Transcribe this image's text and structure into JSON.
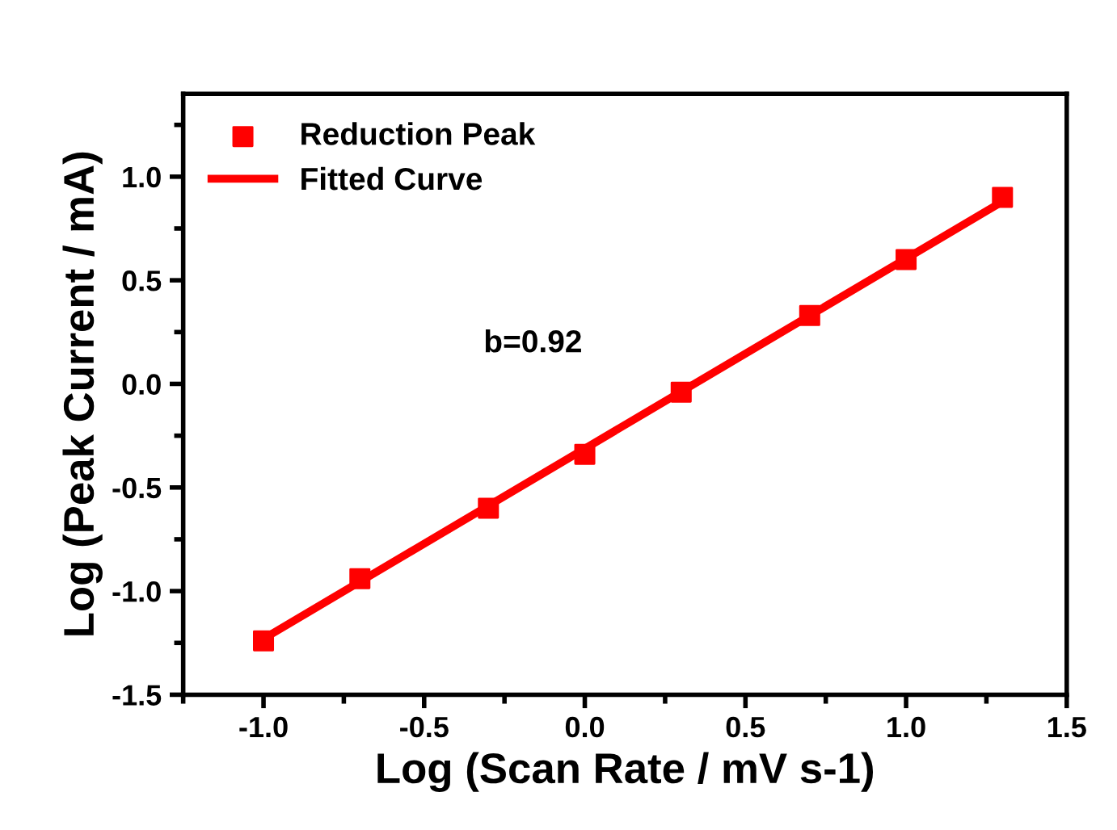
{
  "chart_data": {
    "type": "scatter",
    "xlabel": "Log (Scan Rate / mV s-1)",
    "ylabel": "Log (Peak Current / mA)",
    "x": [
      -1.0,
      -0.7,
      -0.3,
      0.0,
      0.3,
      0.7,
      1.0,
      1.3
    ],
    "series": [
      {
        "name": "Reduction Peak",
        "color": "#ff0000",
        "marker": "square",
        "values": [
          -1.24,
          -0.94,
          -0.6,
          -0.34,
          -0.04,
          0.33,
          0.6,
          0.9
        ]
      },
      {
        "name": "Fitted Curve",
        "type": "line",
        "color": "#ff0000",
        "marker": "none",
        "line_style": "solid",
        "x": [
          -1.0,
          1.3
        ],
        "values": [
          -1.23,
          0.88
        ]
      }
    ],
    "annotations": [
      "b=0.92"
    ],
    "xlim": [
      -1.25,
      1.5
    ],
    "ylim": [
      -1.5,
      1.4
    ],
    "xticks": [
      {
        "value": -1,
        "label": "-1.0"
      },
      -0.5,
      {
        "value": 0,
        "label": "0.0"
      },
      0.5,
      {
        "value": 1,
        "label": "1.0"
      },
      1.5
    ],
    "yticks": [
      -1.5,
      {
        "value": -1,
        "label": "-1.0"
      },
      -0.5,
      {
        "value": 0,
        "label": "0.0"
      },
      0.5,
      {
        "value": 1,
        "label": "1.0"
      }
    ],
    "grid": false,
    "legend": "top left"
  }
}
